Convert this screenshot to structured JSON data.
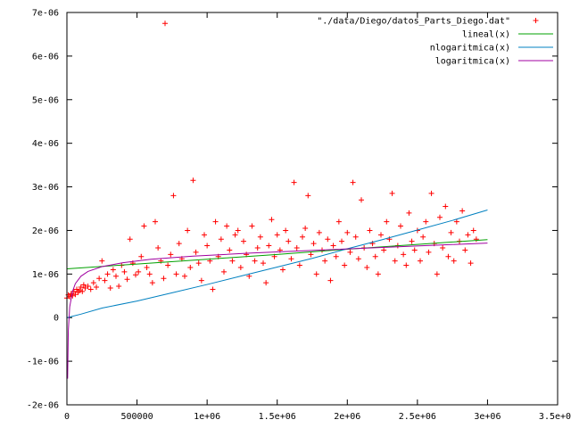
{
  "chart_data": {
    "type": "scatter",
    "xlim": [
      0,
      3500000
    ],
    "ylim": [
      -2e-06,
      7e-06
    ],
    "xticks": [
      {
        "value": 0,
        "label": "0"
      },
      {
        "value": 500000,
        "label": "500000"
      },
      {
        "value": 1000000,
        "label": "1e+06"
      },
      {
        "value": 1500000,
        "label": "1.5e+06"
      },
      {
        "value": 2000000,
        "label": "2e+06"
      },
      {
        "value": 2500000,
        "label": "2.5e+06"
      },
      {
        "value": 3000000,
        "label": "3e+06"
      },
      {
        "value": 3500000,
        "label": "3.5e+06"
      }
    ],
    "yticks": [
      {
        "value": -2e-06,
        "label": "-2e-06"
      },
      {
        "value": -1e-06,
        "label": "-1e-06"
      },
      {
        "value": 0,
        "label": "0"
      },
      {
        "value": 1e-06,
        "label": "1e-06"
      },
      {
        "value": 2e-06,
        "label": "2e-06"
      },
      {
        "value": 3e-06,
        "label": "3e-06"
      },
      {
        "value": 4e-06,
        "label": "4e-06"
      },
      {
        "value": 5e-06,
        "label": "5e-06"
      },
      {
        "value": 6e-06,
        "label": "6e-06"
      },
      {
        "value": 7e-06,
        "label": "7e-06"
      }
    ],
    "grid": false,
    "legend_position": "top-right",
    "series": [
      {
        "name": "\"./data/Diego/datos_Parts_Diego.dat\"",
        "kind": "points",
        "marker": "plus",
        "color": "#ff0000",
        "points": [
          [
            0,
            4.5e-07
          ],
          [
            10000,
            5.2e-07
          ],
          [
            20000,
            4.8e-07
          ],
          [
            30000,
            5.5e-07
          ],
          [
            40000,
            5e-07
          ],
          [
            50000,
            6e-07
          ],
          [
            60000,
            5.3e-07
          ],
          [
            70000,
            6.5e-07
          ],
          [
            80000,
            5.8e-07
          ],
          [
            90000,
            6.2e-07
          ],
          [
            100000,
            7e-07
          ],
          [
            110000,
            6e-07
          ],
          [
            120000,
            7.5e-07
          ],
          [
            130000,
            6.8e-07
          ],
          [
            150000,
            7.2e-07
          ],
          [
            170000,
            6.5e-07
          ],
          [
            190000,
            8e-07
          ],
          [
            210000,
            7e-07
          ],
          [
            230000,
            9e-07
          ],
          [
            250000,
            1.3e-06
          ],
          [
            270000,
            8.5e-07
          ],
          [
            290000,
            1e-06
          ],
          [
            310000,
            6.8e-07
          ],
          [
            330000,
            1.1e-06
          ],
          [
            350000,
            9.5e-07
          ],
          [
            370000,
            7.2e-07
          ],
          [
            390000,
            1.2e-06
          ],
          [
            410000,
            1.05e-06
          ],
          [
            430000,
            8.8e-07
          ],
          [
            450000,
            1.8e-06
          ],
          [
            470000,
            1.25e-06
          ],
          [
            490000,
            9.8e-07
          ],
          [
            510000,
            1.05e-06
          ],
          [
            530000,
            1.4e-06
          ],
          [
            550000,
            2.1e-06
          ],
          [
            570000,
            1.15e-06
          ],
          [
            590000,
            1e-06
          ],
          [
            610000,
            8e-07
          ],
          [
            630000,
            2.2e-06
          ],
          [
            650000,
            1.6e-06
          ],
          [
            670000,
            1.3e-06
          ],
          [
            690000,
            9e-07
          ],
          [
            700000,
            6.75e-06
          ],
          [
            720000,
            1.2e-06
          ],
          [
            740000,
            1.45e-06
          ],
          [
            760000,
            2.8e-06
          ],
          [
            780000,
            1e-06
          ],
          [
            800000,
            1.7e-06
          ],
          [
            820000,
            1.35e-06
          ],
          [
            840000,
            9.5e-07
          ],
          [
            860000,
            2e-06
          ],
          [
            880000,
            1.15e-06
          ],
          [
            900000,
            3.15e-06
          ],
          [
            920000,
            1.5e-06
          ],
          [
            940000,
            1.25e-06
          ],
          [
            960000,
            8.5e-07
          ],
          [
            980000,
            1.9e-06
          ],
          [
            1000000,
            1.65e-06
          ],
          [
            1020000,
            1.3e-06
          ],
          [
            1040000,
            6.5e-07
          ],
          [
            1060000,
            2.2e-06
          ],
          [
            1080000,
            1.4e-06
          ],
          [
            1100000,
            1.8e-06
          ],
          [
            1120000,
            1.05e-06
          ],
          [
            1140000,
            2.1e-06
          ],
          [
            1160000,
            1.55e-06
          ],
          [
            1180000,
            1.3e-06
          ],
          [
            1200000,
            1.9e-06
          ],
          [
            1220000,
            2e-06
          ],
          [
            1240000,
            1.15e-06
          ],
          [
            1260000,
            1.75e-06
          ],
          [
            1280000,
            1.45e-06
          ],
          [
            1300000,
            9.5e-07
          ],
          [
            1320000,
            2.1e-06
          ],
          [
            1340000,
            1.3e-06
          ],
          [
            1360000,
            1.6e-06
          ],
          [
            1380000,
            1.85e-06
          ],
          [
            1400000,
            1.25e-06
          ],
          [
            1420000,
            8e-07
          ],
          [
            1440000,
            1.65e-06
          ],
          [
            1460000,
            2.25e-06
          ],
          [
            1480000,
            1.4e-06
          ],
          [
            1500000,
            1.9e-06
          ],
          [
            1520000,
            1.55e-06
          ],
          [
            1540000,
            1.1e-06
          ],
          [
            1560000,
            2e-06
          ],
          [
            1580000,
            1.75e-06
          ],
          [
            1600000,
            1.35e-06
          ],
          [
            1620000,
            3.1e-06
          ],
          [
            1640000,
            1.6e-06
          ],
          [
            1660000,
            1.2e-06
          ],
          [
            1680000,
            1.85e-06
          ],
          [
            1700000,
            2.05e-06
          ],
          [
            1720000,
            2.8e-06
          ],
          [
            1740000,
            1.45e-06
          ],
          [
            1760000,
            1.7e-06
          ],
          [
            1780000,
            1e-06
          ],
          [
            1800000,
            1.95e-06
          ],
          [
            1820000,
            1.55e-06
          ],
          [
            1840000,
            1.3e-06
          ],
          [
            1860000,
            1.8e-06
          ],
          [
            1880000,
            8.5e-07
          ],
          [
            1900000,
            1.65e-06
          ],
          [
            1920000,
            1.4e-06
          ],
          [
            1940000,
            2.2e-06
          ],
          [
            1960000,
            1.75e-06
          ],
          [
            1980000,
            1.2e-06
          ],
          [
            2000000,
            1.95e-06
          ],
          [
            2020000,
            1.5e-06
          ],
          [
            2040000,
            3.1e-06
          ],
          [
            2060000,
            1.85e-06
          ],
          [
            2080000,
            1.35e-06
          ],
          [
            2100000,
            2.7e-06
          ],
          [
            2120000,
            1.6e-06
          ],
          [
            2140000,
            1.15e-06
          ],
          [
            2160000,
            2e-06
          ],
          [
            2180000,
            1.7e-06
          ],
          [
            2200000,
            1.4e-06
          ],
          [
            2220000,
            1e-06
          ],
          [
            2240000,
            1.9e-06
          ],
          [
            2260000,
            1.55e-06
          ],
          [
            2280000,
            2.2e-06
          ],
          [
            2300000,
            1.8e-06
          ],
          [
            2320000,
            2.85e-06
          ],
          [
            2340000,
            1.3e-06
          ],
          [
            2360000,
            1.65e-06
          ],
          [
            2380000,
            2.1e-06
          ],
          [
            2400000,
            1.45e-06
          ],
          [
            2420000,
            1.2e-06
          ],
          [
            2440000,
            2.4e-06
          ],
          [
            2460000,
            1.75e-06
          ],
          [
            2480000,
            1.55e-06
          ],
          [
            2500000,
            2e-06
          ],
          [
            2520000,
            1.3e-06
          ],
          [
            2540000,
            1.85e-06
          ],
          [
            2560000,
            2.2e-06
          ],
          [
            2580000,
            1.5e-06
          ],
          [
            2600000,
            2.85e-06
          ],
          [
            2620000,
            1.7e-06
          ],
          [
            2640000,
            1e-06
          ],
          [
            2660000,
            2.3e-06
          ],
          [
            2680000,
            1.6e-06
          ],
          [
            2700000,
            2.55e-06
          ],
          [
            2720000,
            1.4e-06
          ],
          [
            2740000,
            1.95e-06
          ],
          [
            2760000,
            1.3e-06
          ],
          [
            2780000,
            2.2e-06
          ],
          [
            2800000,
            1.75e-06
          ],
          [
            2820000,
            2.45e-06
          ],
          [
            2840000,
            1.55e-06
          ],
          [
            2860000,
            1.9e-06
          ],
          [
            2880000,
            1.25e-06
          ],
          [
            2900000,
            2e-06
          ],
          [
            2920000,
            1.8e-06
          ]
        ]
      },
      {
        "name": "lineal(x)",
        "kind": "line",
        "color": "#00a000",
        "points": [
          [
            0,
            1.12e-06
          ],
          [
            500000,
            1.23e-06
          ],
          [
            1000000,
            1.34e-06
          ],
          [
            1500000,
            1.45e-06
          ],
          [
            2000000,
            1.57e-06
          ],
          [
            2500000,
            1.68e-06
          ],
          [
            3000000,
            1.79e-06
          ]
        ]
      },
      {
        "name": "nlogaritmica(x)",
        "kind": "line",
        "color": "#0080c0",
        "points": [
          [
            0,
            0
          ],
          [
            100000,
            8e-08
          ],
          [
            250000,
            2.2e-07
          ],
          [
            500000,
            3.8e-07
          ],
          [
            750000,
            5.7e-07
          ],
          [
            1000000,
            7.6e-07
          ],
          [
            1250000,
            9.6e-07
          ],
          [
            1500000,
            1.16e-06
          ],
          [
            1750000,
            1.36e-06
          ],
          [
            2000000,
            1.58e-06
          ],
          [
            2250000,
            1.79e-06
          ],
          [
            2500000,
            2.01e-06
          ],
          [
            2750000,
            2.23e-06
          ],
          [
            3000000,
            2.47e-06
          ]
        ]
      },
      {
        "name": "logaritmica(x)",
        "kind": "line",
        "color": "#a000a0",
        "points": [
          [
            5000,
            -1.4e-06
          ],
          [
            10000,
            -3e-07
          ],
          [
            20000,
            2.5e-07
          ],
          [
            40000,
            6e-07
          ],
          [
            60000,
            7.8e-07
          ],
          [
            100000,
            9.5e-07
          ],
          [
            150000,
            1.06e-06
          ],
          [
            250000,
            1.17e-06
          ],
          [
            400000,
            1.26e-06
          ],
          [
            600000,
            1.34e-06
          ],
          [
            900000,
            1.41e-06
          ],
          [
            1300000,
            1.48e-06
          ],
          [
            1800000,
            1.55e-06
          ],
          [
            2400000,
            1.63e-06
          ],
          [
            3000000,
            1.71e-06
          ]
        ]
      }
    ]
  }
}
